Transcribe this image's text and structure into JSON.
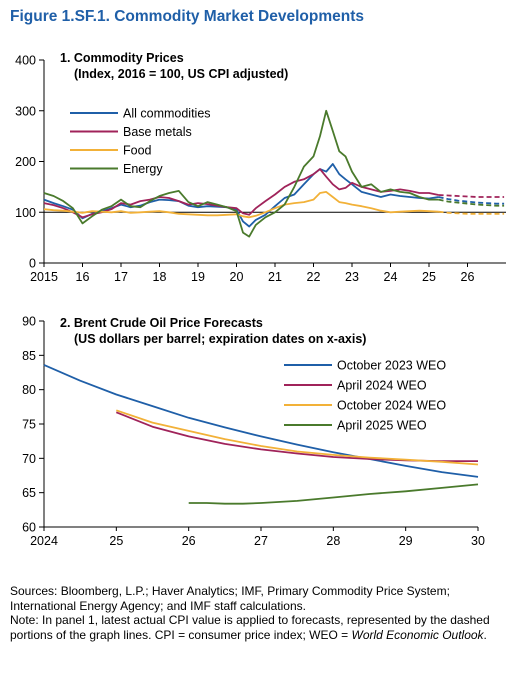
{
  "figure_title": "Figure 1.SF.1.  Commodity Market Developments",
  "notes": {
    "sources": "Sources: Bloomberg, L.P.; Haver Analytics; IMF, Primary Commodity Price System; International Energy Agency; and IMF staff calculations.",
    "note_text": "Note: In panel 1, latest actual CPI value is applied to forecasts, represented by the dashed portions of the graph lines. CPI = consumer price index; WEO = ",
    "note_italic": "World Economic Outlook",
    "note_end": "."
  },
  "chart_data": [
    {
      "type": "line",
      "title": "1. Commodity Prices",
      "subtitle": "(Index, 2016 = 100, US CPI adjusted)",
      "xlim": [
        2015,
        2027
      ],
      "ylim": [
        0,
        400
      ],
      "yticks": [
        0,
        100,
        200,
        300,
        400
      ],
      "xticks": [
        {
          "value": 2015,
          "label": "2015"
        },
        {
          "value": 2016,
          "label": "16"
        },
        {
          "value": 2017,
          "label": "17"
        },
        {
          "value": 2018,
          "label": "18"
        },
        {
          "value": 2019,
          "label": "19"
        },
        {
          "value": 2020,
          "label": "20"
        },
        {
          "value": 2021,
          "label": "21"
        },
        {
          "value": 2022,
          "label": "22"
        },
        {
          "value": 2023,
          "label": "23"
        },
        {
          "value": 2024,
          "label": "24"
        },
        {
          "value": 2025,
          "label": "25"
        },
        {
          "value": 2026,
          "label": "26"
        }
      ],
      "reference_line": 100,
      "forecast_start": 2025.25,
      "legend_position": "top-left",
      "series": [
        {
          "name": "All commodities",
          "color": "#1f5fa8",
          "x": [
            2015,
            2015.25,
            2015.5,
            2015.75,
            2016,
            2016.25,
            2016.5,
            2016.75,
            2017,
            2017.25,
            2017.5,
            2017.75,
            2018,
            2018.25,
            2018.5,
            2018.75,
            2019,
            2019.25,
            2019.5,
            2019.75,
            2020,
            2020.17,
            2020.33,
            2020.5,
            2020.75,
            2021,
            2021.25,
            2021.5,
            2021.75,
            2022,
            2022.17,
            2022.33,
            2022.5,
            2022.67,
            2022.83,
            2023,
            2023.25,
            2023.5,
            2023.75,
            2024,
            2024.25,
            2024.5,
            2024.75,
            2025,
            2025.25,
            2025.5,
            2025.75,
            2026,
            2026.25,
            2026.5,
            2026.75,
            2026.95
          ],
          "y": [
            125,
            118,
            112,
            105,
            88,
            97,
            102,
            108,
            115,
            110,
            113,
            120,
            125,
            124,
            122,
            113,
            110,
            112,
            111,
            110,
            105,
            82,
            72,
            85,
            95,
            112,
            128,
            135,
            155,
            175,
            185,
            180,
            195,
            175,
            165,
            155,
            140,
            135,
            130,
            135,
            132,
            130,
            128,
            127,
            130,
            126,
            123,
            121,
            119,
            118,
            117,
            117
          ]
        },
        {
          "name": "Base metals",
          "color": "#a0235a",
          "x": [
            2015,
            2015.25,
            2015.5,
            2015.75,
            2016,
            2016.25,
            2016.5,
            2016.75,
            2017,
            2017.25,
            2017.5,
            2017.75,
            2018,
            2018.25,
            2018.5,
            2018.75,
            2019,
            2019.25,
            2019.5,
            2019.75,
            2020,
            2020.17,
            2020.33,
            2020.5,
            2020.75,
            2021,
            2021.25,
            2021.5,
            2021.75,
            2022,
            2022.17,
            2022.33,
            2022.5,
            2022.67,
            2022.83,
            2023,
            2023.25,
            2023.5,
            2023.75,
            2024,
            2024.25,
            2024.5,
            2024.75,
            2025,
            2025.25,
            2025.5,
            2025.75,
            2026,
            2026.25,
            2026.5,
            2026.75,
            2026.95
          ],
          "y": [
            118,
            114,
            108,
            100,
            90,
            96,
            100,
            106,
            118,
            115,
            122,
            125,
            130,
            128,
            122,
            115,
            118,
            116,
            113,
            110,
            108,
            98,
            95,
            108,
            122,
            135,
            150,
            160,
            165,
            175,
            185,
            170,
            155,
            145,
            148,
            158,
            150,
            145,
            140,
            142,
            145,
            142,
            138,
            138,
            134,
            133,
            132,
            131,
            130,
            130,
            130,
            130
          ]
        },
        {
          "name": "Food",
          "color": "#f2b138",
          "x": [
            2015,
            2015.25,
            2015.5,
            2015.75,
            2016,
            2016.25,
            2016.5,
            2016.75,
            2017,
            2017.25,
            2017.5,
            2017.75,
            2018,
            2018.25,
            2018.5,
            2018.75,
            2019,
            2019.25,
            2019.5,
            2019.75,
            2020,
            2020.17,
            2020.33,
            2020.5,
            2020.75,
            2021,
            2021.25,
            2021.5,
            2021.75,
            2022,
            2022.17,
            2022.33,
            2022.5,
            2022.67,
            2022.83,
            2023,
            2023.25,
            2023.5,
            2023.75,
            2024,
            2024.25,
            2024.5,
            2024.75,
            2025,
            2025.25,
            2025.5,
            2025.75,
            2026,
            2026.25,
            2026.5,
            2026.75,
            2026.95
          ],
          "y": [
            106,
            104,
            103,
            101,
            99,
            102,
            101,
            100,
            102,
            99,
            100,
            101,
            102,
            100,
            97,
            96,
            95,
            94,
            94,
            95,
            96,
            92,
            90,
            93,
            100,
            108,
            115,
            118,
            120,
            125,
            138,
            140,
            130,
            120,
            118,
            115,
            112,
            108,
            103,
            100,
            101,
            102,
            103,
            102,
            101,
            99,
            98,
            97,
            97,
            97,
            97,
            97
          ]
        },
        {
          "name": "Energy",
          "color": "#4a7a2c",
          "x": [
            2015,
            2015.25,
            2015.5,
            2015.75,
            2016,
            2016.25,
            2016.5,
            2016.75,
            2017,
            2017.25,
            2017.5,
            2017.75,
            2018,
            2018.25,
            2018.5,
            2018.75,
            2019,
            2019.25,
            2019.5,
            2019.75,
            2020,
            2020.17,
            2020.33,
            2020.5,
            2020.75,
            2021,
            2021.25,
            2021.5,
            2021.75,
            2022,
            2022.17,
            2022.33,
            2022.5,
            2022.67,
            2022.83,
            2023,
            2023.25,
            2023.5,
            2023.75,
            2024,
            2024.25,
            2024.5,
            2024.75,
            2025,
            2025.25,
            2025.5,
            2025.75,
            2026,
            2026.25,
            2026.5,
            2026.75,
            2026.95
          ],
          "y": [
            138,
            132,
            122,
            108,
            78,
            92,
            105,
            112,
            125,
            112,
            110,
            122,
            132,
            138,
            142,
            120,
            112,
            120,
            115,
            110,
            102,
            60,
            52,
            75,
            90,
            100,
            115,
            150,
            190,
            210,
            250,
            300,
            260,
            220,
            210,
            180,
            150,
            155,
            140,
            145,
            140,
            138,
            130,
            125,
            125,
            121,
            119,
            117,
            115,
            114,
            113,
            113
          ]
        }
      ]
    },
    {
      "type": "line",
      "title": "2. Brent Crude Oil Price Forecasts",
      "subtitle": "(US dollars per barrel; expiration dates on x-axis)",
      "xlim": [
        2024,
        2030
      ],
      "ylim": [
        60,
        90
      ],
      "yticks": [
        60,
        65,
        70,
        75,
        80,
        85,
        90
      ],
      "xticks": [
        {
          "value": 2024,
          "label": "2024"
        },
        {
          "value": 2025,
          "label": "25"
        },
        {
          "value": 2026,
          "label": "26"
        },
        {
          "value": 2027,
          "label": "27"
        },
        {
          "value": 2028,
          "label": "28"
        },
        {
          "value": 2029,
          "label": "29"
        },
        {
          "value": 2030,
          "label": "30"
        }
      ],
      "legend_position": "top-right",
      "series": [
        {
          "name": "October 2023 WEO",
          "color": "#1f5fa8",
          "x": [
            2024,
            2024.5,
            2025,
            2025.5,
            2026,
            2026.5,
            2027,
            2027.5,
            2028,
            2028.5,
            2029,
            2029.5,
            2030
          ],
          "y": [
            83.6,
            81.3,
            79.3,
            77.6,
            75.9,
            74.5,
            73.2,
            72.0,
            70.9,
            69.9,
            68.9,
            68.0,
            67.3
          ]
        },
        {
          "name": "April 2024 WEO",
          "color": "#a0235a",
          "x": [
            2025,
            2025.5,
            2026,
            2026.5,
            2027,
            2027.5,
            2028,
            2028.5,
            2029,
            2029.5,
            2030
          ],
          "y": [
            76.7,
            74.6,
            73.2,
            72.1,
            71.3,
            70.7,
            70.2,
            69.9,
            69.7,
            69.6,
            69.6
          ]
        },
        {
          "name": "October 2024 WEO",
          "color": "#f2b138",
          "x": [
            2025,
            2025.5,
            2026,
            2026.5,
            2027,
            2027.5,
            2028,
            2028.5,
            2029,
            2029.5,
            2030
          ],
          "y": [
            77.0,
            75.2,
            74.0,
            72.8,
            71.8,
            71.0,
            70.5,
            70.1,
            69.8,
            69.5,
            69.1
          ]
        },
        {
          "name": "April 2025 WEO",
          "color": "#4a7a2c",
          "x": [
            2026,
            2026.25,
            2026.5,
            2026.75,
            2027,
            2027.5,
            2028,
            2028.5,
            2029,
            2029.5,
            2030
          ],
          "y": [
            63.5,
            63.5,
            63.4,
            63.4,
            63.5,
            63.8,
            64.3,
            64.8,
            65.2,
            65.7,
            66.2
          ]
        }
      ]
    }
  ]
}
